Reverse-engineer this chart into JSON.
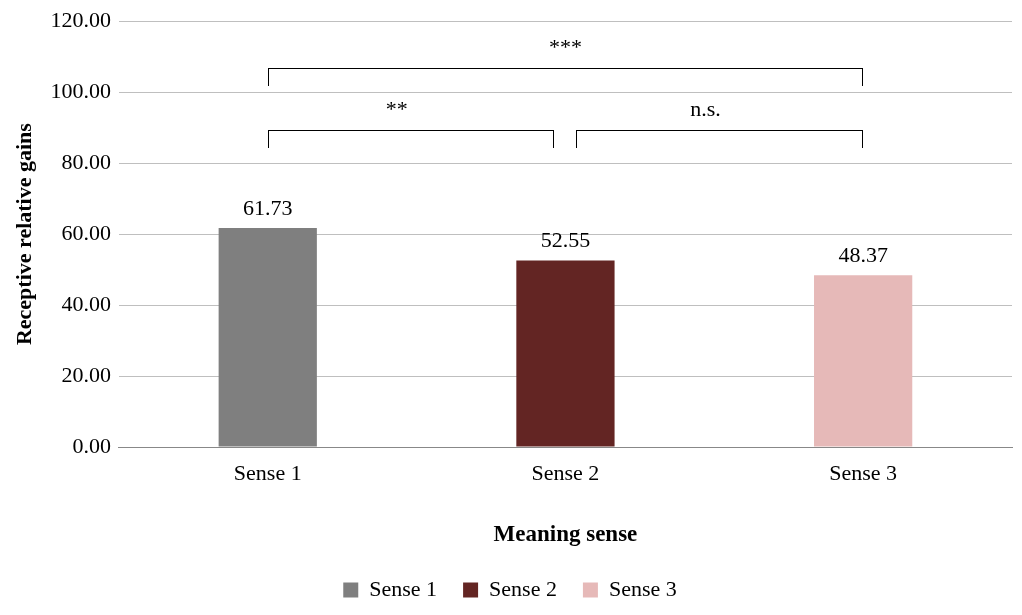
{
  "chart_data": {
    "type": "bar",
    "xlabel": "Meaning sense",
    "ylabel": "Receptive relative gains",
    "categories": [
      "Sense 1",
      "Sense 2",
      "Sense 3"
    ],
    "series": [
      {
        "name": "Sense 1",
        "color": "#7f7f7f",
        "values": [
          61.73,
          null,
          null
        ]
      },
      {
        "name": "Sense 2",
        "color": "#632523",
        "values": [
          null,
          52.55,
          null
        ]
      },
      {
        "name": "Sense 3",
        "color": "#e6b9b8",
        "values": [
          null,
          null,
          48.37
        ]
      }
    ],
    "ylim": [
      0,
      120
    ],
    "yticks": [
      {
        "value": 0,
        "label": "0.00"
      },
      {
        "value": 20,
        "label": "20.00"
      },
      {
        "value": 40,
        "label": "40.00"
      },
      {
        "value": 60,
        "label": "60.00"
      },
      {
        "value": 80,
        "label": "80.00"
      },
      {
        "value": 100,
        "label": "100.00"
      },
      {
        "value": 120,
        "label": "120.00"
      }
    ],
    "grid": "y",
    "legend": "bottom",
    "data_labels": true,
    "annotations": [
      "***",
      "**",
      "n.s."
    ]
  }
}
